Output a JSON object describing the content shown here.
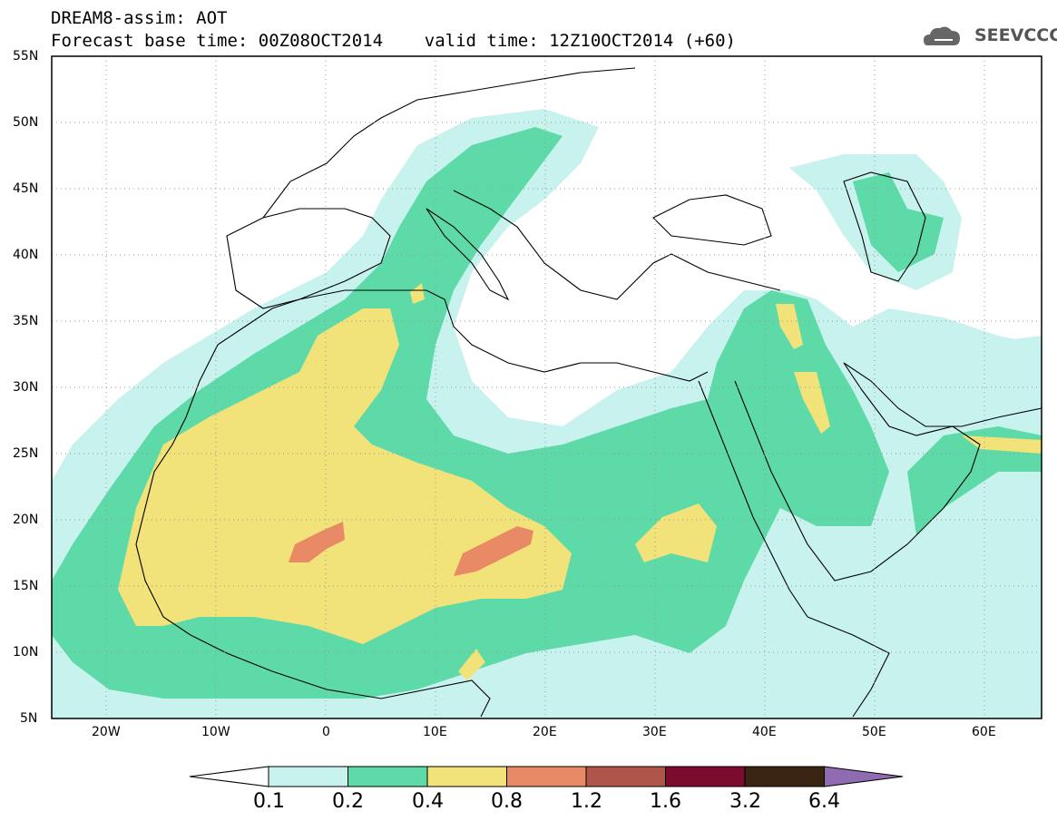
{
  "header": {
    "line1": "DREAM8-assim: AOT",
    "line2": "Forecast base time: 00Z08OCT2014    valid time: 12Z10OCT2014 (+60)"
  },
  "logo": {
    "text": "SEEVCCC",
    "icon": "cloud-logo-icon"
  },
  "map": {
    "lat_range": [
      5,
      55
    ],
    "lon_range": [
      -25,
      65
    ],
    "grid": true,
    "lat_labels": [
      "55N",
      "50N",
      "45N",
      "40N",
      "35N",
      "30N",
      "25N",
      "20N",
      "15N",
      "10N",
      "5N"
    ],
    "lon_labels": [
      "20W",
      "10W",
      "0",
      "10E",
      "20E",
      "30E",
      "40E",
      "50E",
      "60E"
    ]
  },
  "colorbar": {
    "levels": [
      "0.1",
      "0.2",
      "0.4",
      "0.8",
      "1.2",
      "1.6",
      "3.2",
      "6.4"
    ],
    "colors": [
      "#ffffff",
      "#c8f2ee",
      "#5ed9a8",
      "#f2e27a",
      "#e98a66",
      "#b0554a",
      "#7a0d2e",
      "#3a2412",
      "#8f6bb1"
    ]
  },
  "colors": {
    "c01": "#c8f2ee",
    "c02": "#5ed9a8",
    "c04": "#f2e27a",
    "c08": "#e98a66",
    "coast": "#000000"
  }
}
